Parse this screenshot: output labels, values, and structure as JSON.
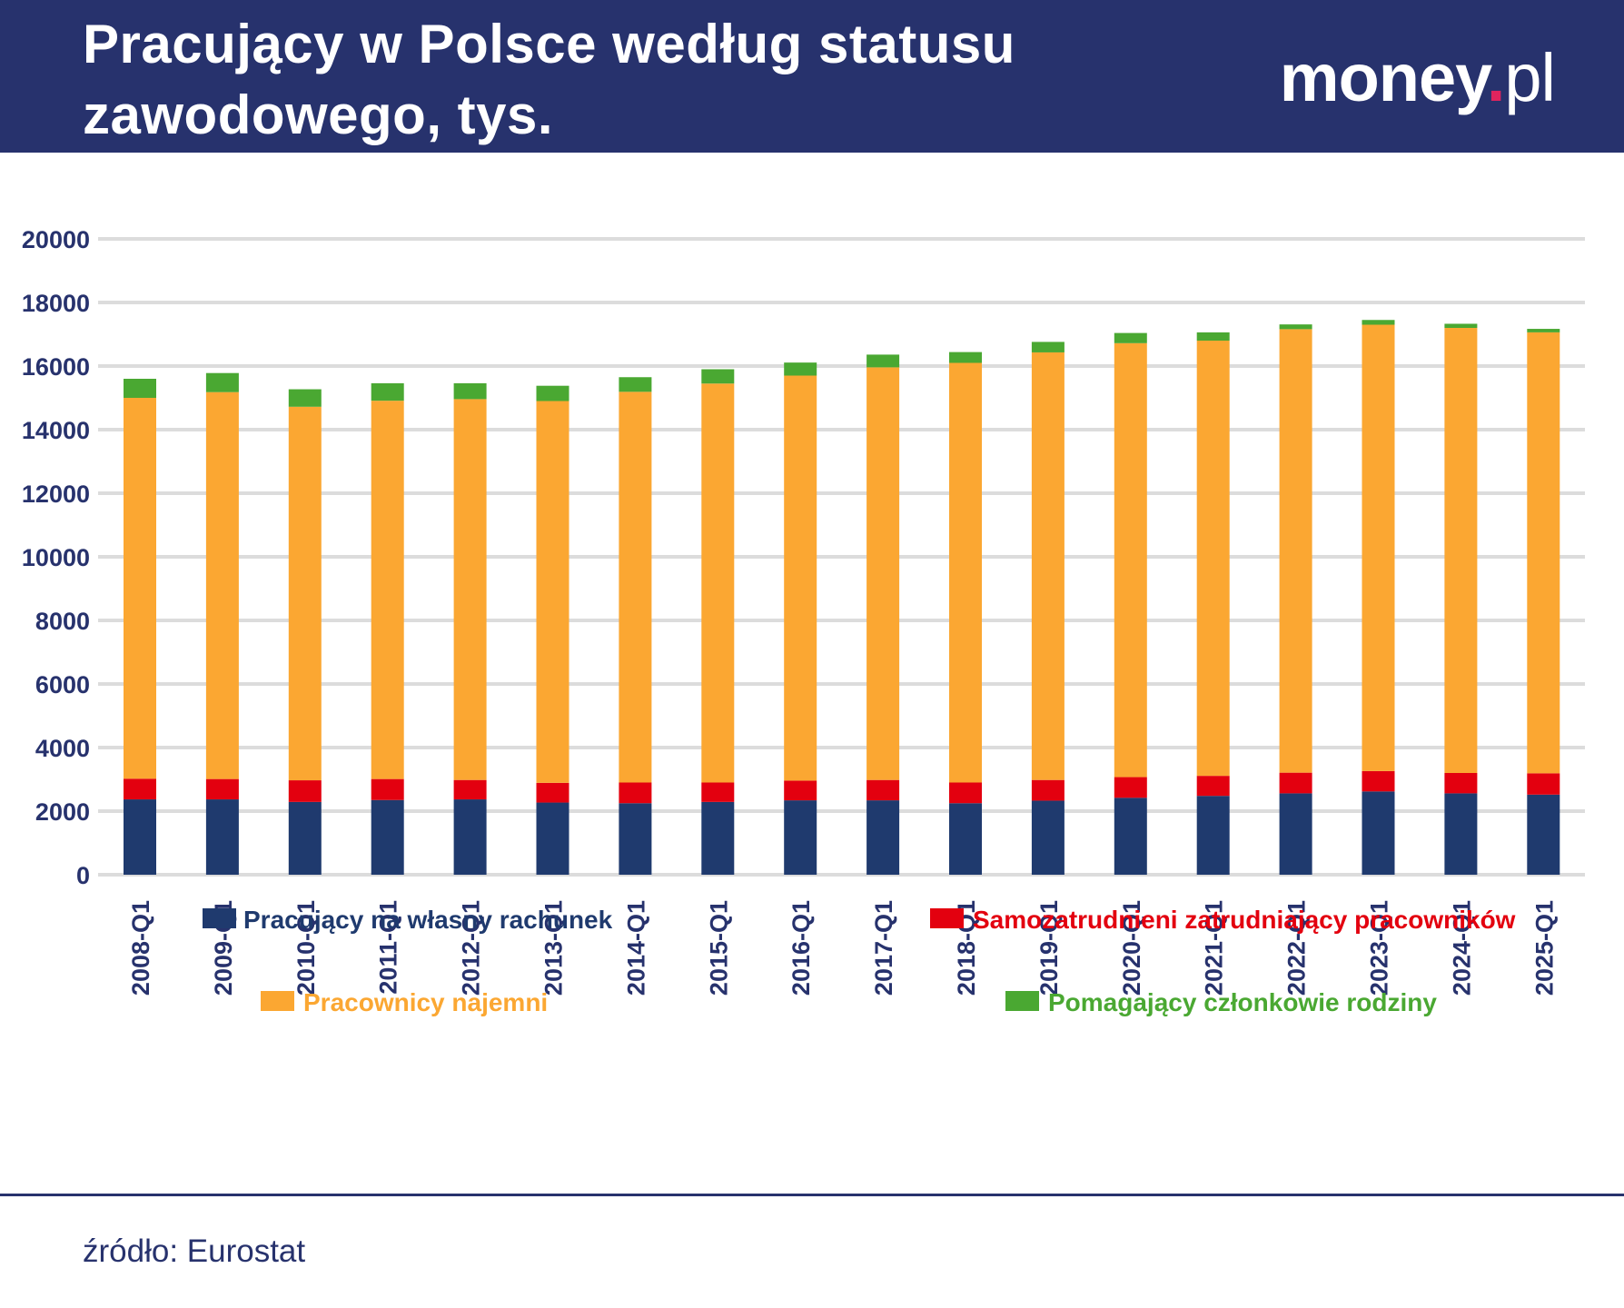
{
  "header": {
    "title_line1": "Pracujący w Polsce według statusu",
    "title_line2": "zawodowego, tys.",
    "background_color": "#27326d"
  },
  "logo": {
    "brand": "money",
    "dot": ".",
    "tld": "pl",
    "dot_color": "#e0245e"
  },
  "chart_data": {
    "type": "bar",
    "stacked": true,
    "title": "Pracujący w Polsce według statusu zawodowego, tys.",
    "xlabel": "",
    "ylabel": "",
    "ylim": [
      0,
      20000
    ],
    "yticks": [
      0,
      2000,
      4000,
      6000,
      8000,
      10000,
      12000,
      14000,
      16000,
      18000,
      20000
    ],
    "grid": true,
    "categories": [
      "2008-Q1",
      "2009-Q1",
      "2010-Q1",
      "2011-Q1",
      "2012-Q1",
      "2013-Q1",
      "2014-Q1",
      "2015-Q1",
      "2016-Q1",
      "2017-Q1",
      "2018-Q1",
      "2019-Q1",
      "2020-Q1",
      "2021-Q1",
      "2022-Q1",
      "2023-Q1",
      "2024-Q1",
      "2025-Q1"
    ],
    "series": [
      {
        "name": "Pracujący na własny rachunek",
        "color": "#1f3a6e",
        "values": [
          2370,
          2370,
          2290,
          2350,
          2370,
          2270,
          2250,
          2290,
          2340,
          2340,
          2250,
          2330,
          2420,
          2480,
          2560,
          2620,
          2560,
          2520
        ]
      },
      {
        "name": "Samozatrudnieni zatrudniający pracowników",
        "color": "#e3000f",
        "values": [
          650,
          640,
          680,
          660,
          610,
          620,
          650,
          610,
          620,
          640,
          650,
          650,
          650,
          630,
          650,
          640,
          640,
          670
        ]
      },
      {
        "name": "Pracownicy najemni",
        "color": "#fba732",
        "values": [
          11980,
          12170,
          11750,
          11900,
          11980,
          12010,
          12290,
          12550,
          12740,
          12980,
          13200,
          13450,
          13650,
          13690,
          13950,
          14040,
          14000,
          13870
        ]
      },
      {
        "name": "Pomagający członkowie rodziny",
        "color": "#4aa832",
        "values": [
          600,
          600,
          550,
          550,
          500,
          480,
          460,
          450,
          410,
          400,
          340,
          330,
          320,
          260,
          150,
          150,
          130,
          110
        ]
      }
    ],
    "legend_position": "bottom"
  },
  "source": {
    "text": "źródło: Eurostat"
  }
}
